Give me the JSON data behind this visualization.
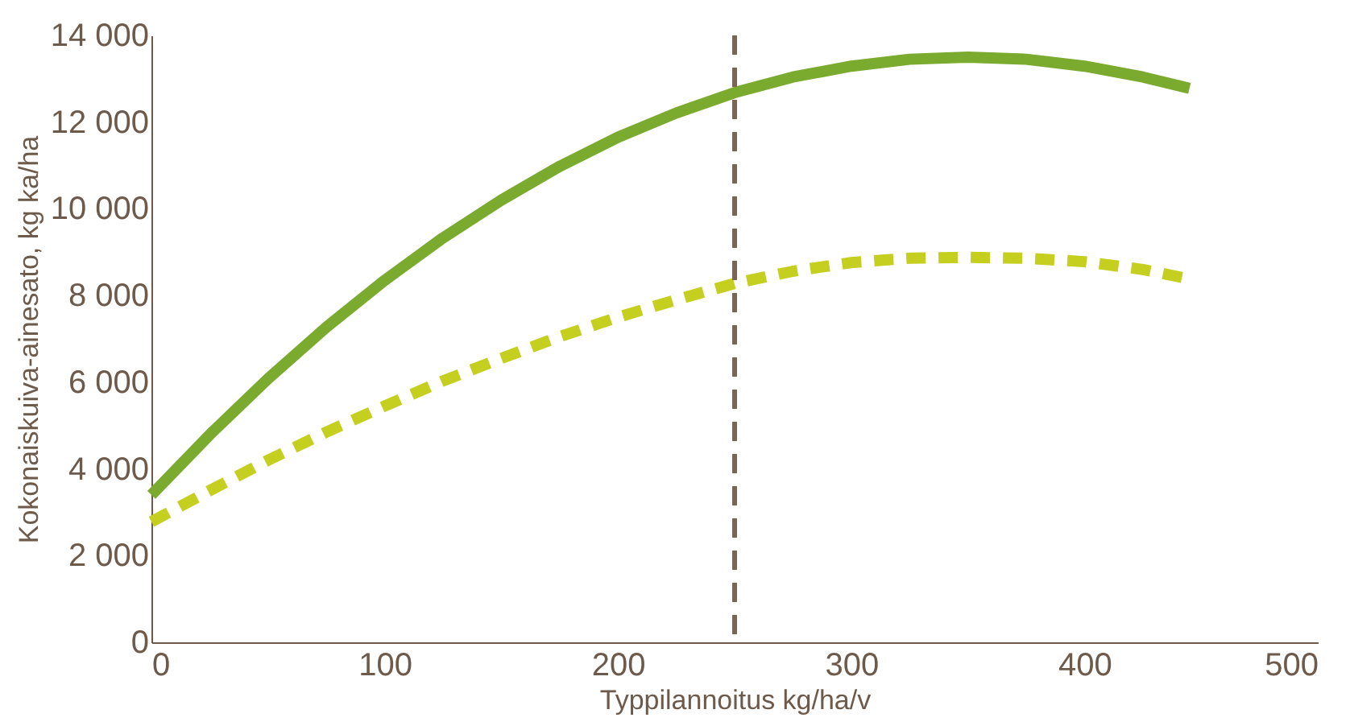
{
  "chart_data": {
    "type": "line",
    "xlabel": "Typpilannoitus kg/ha/v",
    "ylabel": "Kokonaiskuiva-ainesato, kg ka/ha",
    "xlim": [
      0,
      500
    ],
    "xticks": [
      0,
      100,
      200,
      300,
      400,
      500
    ],
    "ylim": [
      0,
      14000
    ],
    "yticks": [
      0,
      {
        "value": 2000,
        "label": "2 000"
      },
      {
        "value": 4000,
        "label": "4 000"
      },
      {
        "value": 6000,
        "label": "6 000"
      },
      {
        "value": 8000,
        "label": "8 000"
      },
      {
        "value": 10000,
        "label": "10 000"
      },
      {
        "value": 12000,
        "label": "12 000"
      },
      {
        "value": 14000,
        "label": "14 000"
      }
    ],
    "x": [
      0,
      25,
      50,
      75,
      100,
      125,
      150,
      175,
      200,
      225,
      250,
      275,
      300,
      325,
      350,
      375,
      400,
      425,
      445
    ],
    "series": [
      {
        "color": "#7aab2f",
        "line_style": "solid",
        "values": [
          3400,
          4790,
          6080,
          7270,
          8350,
          9330,
          10200,
          10980,
          11650,
          12210,
          12680,
          13040,
          13290,
          13450,
          13500,
          13450,
          13290,
          13040,
          12780
        ]
      },
      {
        "color": "#c4cf1f",
        "line_style": "dashed",
        "values": [
          2780,
          3500,
          4200,
          4850,
          5450,
          6030,
          6550,
          7050,
          7500,
          7900,
          8280,
          8560,
          8760,
          8860,
          8880,
          8860,
          8780,
          8600,
          8380
        ]
      }
    ],
    "ref_lines": [
      {
        "axis": "x",
        "value": 250,
        "color": "#7a6652",
        "line_style": "dashed"
      }
    ],
    "grid": false,
    "marker": "none"
  }
}
